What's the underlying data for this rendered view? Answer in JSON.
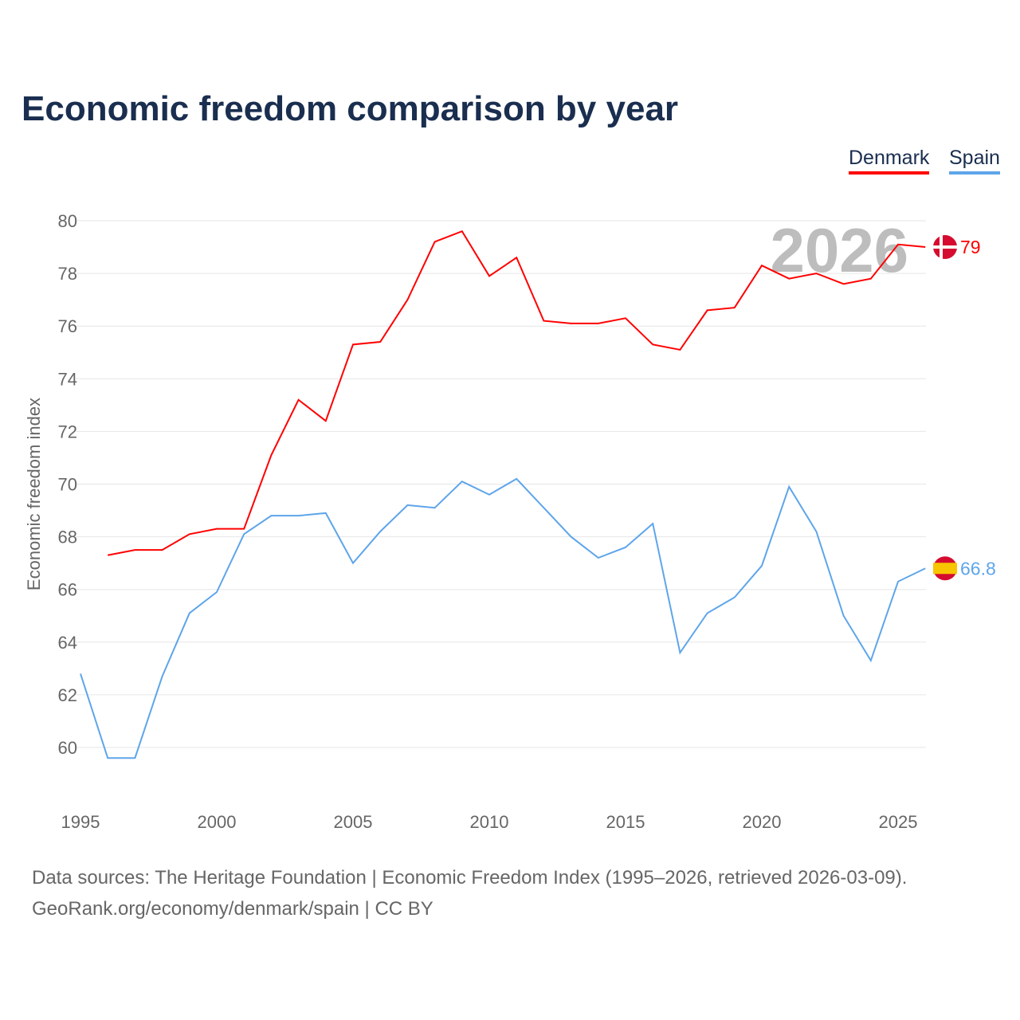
{
  "chart_data": {
    "type": "line",
    "title": "Economic freedom comparison by year",
    "xlabel": "",
    "ylabel": "Economic freedom index",
    "xlim": [
      1995,
      2026
    ],
    "ylim": [
      60,
      80
    ],
    "yticks": [
      60,
      62,
      64,
      66,
      68,
      70,
      72,
      74,
      76,
      78,
      80
    ],
    "xticks": [
      1995,
      2000,
      2005,
      2010,
      2015,
      2020,
      2025
    ],
    "grid": true,
    "legend_position": "top-right",
    "current_year_label": "2026",
    "x": [
      1995,
      1996,
      1997,
      1998,
      1999,
      2000,
      2001,
      2002,
      2003,
      2004,
      2005,
      2006,
      2007,
      2008,
      2009,
      2010,
      2011,
      2012,
      2013,
      2014,
      2015,
      2016,
      2017,
      2018,
      2019,
      2020,
      2021,
      2022,
      2023,
      2024,
      2025,
      2026
    ],
    "series": [
      {
        "name": "Denmark",
        "color": "#ff0000",
        "end_label": "79",
        "values": [
          null,
          67.3,
          67.5,
          67.5,
          68.1,
          68.3,
          68.3,
          71.1,
          73.2,
          72.4,
          75.3,
          75.4,
          77.0,
          79.2,
          79.6,
          77.9,
          78.6,
          76.2,
          76.1,
          76.1,
          76.3,
          75.3,
          75.1,
          76.6,
          76.7,
          78.3,
          77.8,
          78.0,
          77.6,
          77.8,
          79.1,
          79.0
        ]
      },
      {
        "name": "Spain",
        "color": "#5ea5ea",
        "end_label": "66.8",
        "values": [
          62.8,
          59.6,
          59.6,
          62.7,
          65.1,
          65.9,
          68.1,
          68.8,
          68.8,
          68.9,
          67.0,
          68.2,
          69.2,
          69.1,
          70.1,
          69.6,
          70.2,
          69.1,
          68.0,
          67.2,
          67.6,
          68.5,
          63.6,
          65.1,
          65.7,
          66.9,
          69.9,
          68.2,
          65.0,
          63.3,
          66.3,
          66.8
        ]
      }
    ]
  },
  "footer": {
    "line1": "Data sources: The Heritage Foundation | Economic Freedom Index (1995–2026, retrieved 2026-03-09).",
    "line2": "GeoRank.org/economy/denmark/spain | CC BY"
  }
}
